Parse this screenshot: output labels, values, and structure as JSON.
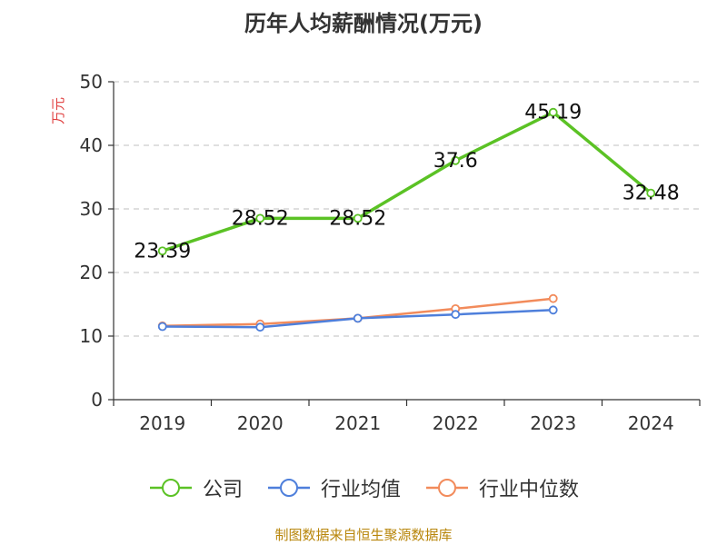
{
  "chart_data": {
    "type": "line",
    "title": "历年人均薪酬情况(万元)",
    "ylabel": "万元",
    "xlabel": "",
    "categories": [
      "2019",
      "2020",
      "2021",
      "2022",
      "2023",
      "2024"
    ],
    "ylim": [
      0,
      50
    ],
    "yticks": [
      0,
      10,
      20,
      30,
      40,
      50
    ],
    "grid": true,
    "legend_position": "bottom",
    "series": [
      {
        "name": "公司",
        "color": "#5bc225",
        "values": [
          23.39,
          28.52,
          28.52,
          37.6,
          45.19,
          32.48
        ],
        "labels": [
          "23.39",
          "28.52",
          "28.52",
          "37.6",
          "45.19",
          "32.48"
        ]
      },
      {
        "name": "行业均值",
        "color": "#4e7fdb",
        "values": [
          11.5,
          11.4,
          12.8,
          13.4,
          14.1,
          null
        ]
      },
      {
        "name": "行业中位数",
        "color": "#f28b5b",
        "values": [
          11.6,
          11.9,
          12.8,
          14.3,
          15.9,
          null
        ]
      }
    ]
  },
  "source_note": "制图数据来自恒生聚源数据库",
  "colors": {
    "axis": "#333333",
    "grid": "#cccccc",
    "ylabel": "#e04040",
    "source": "#b8860b"
  }
}
